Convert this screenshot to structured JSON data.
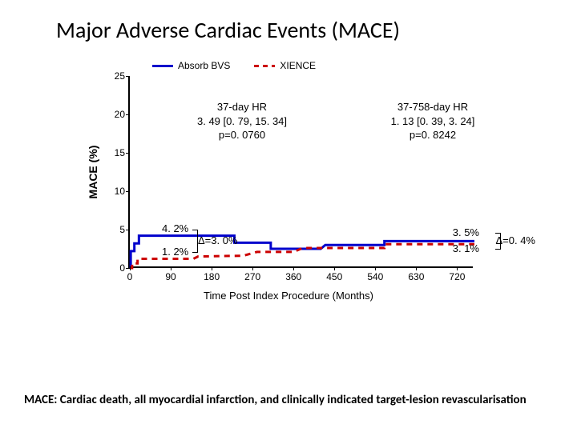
{
  "title": "Major Adverse Cardiac Events (MACE)",
  "chart": {
    "type": "step-line",
    "xlabel": "Time Post Index Procedure (Months)",
    "ylabel": "MACE (%)",
    "xlim": [
      0,
      758
    ],
    "ylim": [
      0,
      25
    ],
    "xticks": [
      0,
      90,
      180,
      270,
      360,
      450,
      540,
      630,
      720
    ],
    "yticks": [
      0,
      5,
      10,
      15,
      20,
      25
    ],
    "background_color": "#ffffff",
    "axis_color": "#000000",
    "label_fontsize": 13,
    "tick_fontsize": 12,
    "series": [
      {
        "name": "Absorb BVS",
        "color": "#0000cc",
        "style": "solid",
        "line_width": 3,
        "points": [
          {
            "x": 0,
            "y": 0
          },
          {
            "x": 2,
            "y": 0
          },
          {
            "x": 2,
            "y": 2.2
          },
          {
            "x": 10,
            "y": 2.2
          },
          {
            "x": 10,
            "y": 3.2
          },
          {
            "x": 20,
            "y": 3.2
          },
          {
            "x": 20,
            "y": 4.2
          },
          {
            "x": 37,
            "y": 4.2
          },
          {
            "x": 60,
            "y": 4.2
          },
          {
            "x": 120,
            "y": 4.2
          },
          {
            "x": 200,
            "y": 4.2
          },
          {
            "x": 230,
            "y": 4.2
          },
          {
            "x": 230,
            "y": 3.3
          },
          {
            "x": 310,
            "y": 3.3
          },
          {
            "x": 310,
            "y": 2.5
          },
          {
            "x": 420,
            "y": 2.5
          },
          {
            "x": 430,
            "y": 3.0
          },
          {
            "x": 520,
            "y": 3.0
          },
          {
            "x": 560,
            "y": 3.0
          },
          {
            "x": 560,
            "y": 3.5
          },
          {
            "x": 758,
            "y": 3.5
          }
        ]
      },
      {
        "name": "XIENCE",
        "color": "#cc0000",
        "style": "dashed",
        "line_width": 3,
        "points": [
          {
            "x": 0,
            "y": 0
          },
          {
            "x": 5,
            "y": 0
          },
          {
            "x": 5,
            "y": 0.6
          },
          {
            "x": 17,
            "y": 0.6
          },
          {
            "x": 17,
            "y": 1.2
          },
          {
            "x": 37,
            "y": 1.2
          },
          {
            "x": 140,
            "y": 1.2
          },
          {
            "x": 150,
            "y": 1.5
          },
          {
            "x": 250,
            "y": 1.6
          },
          {
            "x": 280,
            "y": 2.1
          },
          {
            "x": 360,
            "y": 2.1
          },
          {
            "x": 380,
            "y": 2.6
          },
          {
            "x": 470,
            "y": 2.6
          },
          {
            "x": 520,
            "y": 2.6
          },
          {
            "x": 560,
            "y": 2.6
          },
          {
            "x": 560,
            "y": 3.1
          },
          {
            "x": 758,
            "y": 3.1
          }
        ]
      }
    ],
    "legend": {
      "items": [
        {
          "label": "Absorb BVS",
          "color": "#0000cc",
          "style": "solid"
        },
        {
          "label": "XIENCE",
          "color": "#cc0000",
          "style": "dashed"
        }
      ]
    },
    "annotations": {
      "left": {
        "line1": "37-day HR",
        "line2": "3. 49 [0. 79, 15. 34]",
        "line3": "p=0. 0760"
      },
      "right": {
        "line1": "37-758-day HR",
        "line2": "1. 13 [0. 39, 3. 24]",
        "line3": "p=0. 8242"
      }
    },
    "value_labels": {
      "left_top": "4. 2%",
      "left_bot": "1. 2%",
      "left_delta": "Δ=3. 0%",
      "right_top": "3. 5%",
      "right_bot": "3. 1%",
      "right_delta": "Δ=0. 4%"
    }
  },
  "footnote": "MACE: Cardiac death, all myocardial infarction, and clinically indicated target-lesion revascularisation"
}
